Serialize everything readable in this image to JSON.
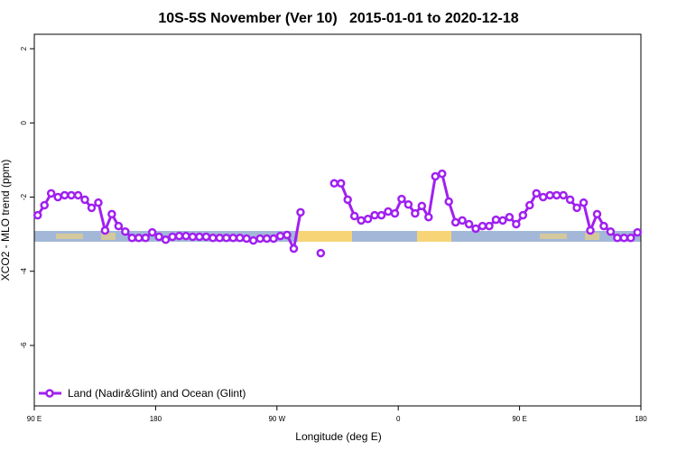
{
  "chart_data": {
    "type": "line",
    "title": "10S-5S November (Ver 10)   2015-01-01 to 2020-12-18",
    "x_label": "Longitude (deg E)",
    "y_label": "XCO2 - MLO trend (ppm)",
    "xlim": [
      90,
      540
    ],
    "xticks": [
      {
        "value": 90,
        "label": "90 E"
      },
      {
        "value": 180,
        "label": "180"
      },
      {
        "value": 270,
        "label": "90 W"
      },
      {
        "value": 360,
        "label": "0"
      },
      {
        "value": 450,
        "label": "90 E"
      },
      {
        "value": 540,
        "label": "180"
      }
    ],
    "ylim": [
      -7.63,
      2.39
    ],
    "yticks": [
      2,
      0,
      -2,
      -4,
      -6
    ],
    "legend": "bottom-left",
    "x": [
      92.5,
      97.5,
      102.5,
      107.5,
      112.5,
      117.5,
      122.5,
      127.5,
      132.5,
      137.5,
      142.5,
      147.5,
      152.5,
      157.5,
      162.5,
      167.5,
      172.5,
      177.5,
      182.5,
      187.5,
      192.5,
      197.5,
      202.5,
      207.5,
      212.5,
      217.5,
      222.5,
      227.5,
      232.5,
      237.5,
      242.5,
      247.5,
      252.5,
      257.5,
      262.5,
      267.5,
      272.5,
      277.5,
      282.5,
      287.5,
      292.5,
      297.5,
      302.5,
      307.5,
      312.5,
      317.5,
      322.5,
      327.5,
      332.5,
      337.5,
      342.5,
      347.5,
      352.5,
      357.5,
      362.5,
      367.5,
      372.5,
      377.5,
      382.5,
      387.5,
      392.5,
      397.5,
      402.5,
      407.5,
      412.5,
      417.5,
      422.5,
      427.5,
      432.5,
      437.5,
      442.5,
      447.5,
      452.5,
      457.5,
      462.5,
      467.5,
      472.5,
      477.5,
      482.5,
      487.5,
      492.5,
      497.5,
      502.5,
      507.5,
      512.5,
      517.5,
      522.5,
      527.5,
      532.5,
      537.5
    ],
    "series": [
      {
        "name": "Land (Nadir&Glint) and Ocean (Glint)",
        "color": "#a020f0",
        "values": [
          -2.49,
          -2.22,
          -1.9,
          -2.0,
          -1.95,
          -1.95,
          -1.95,
          -2.07,
          -2.29,
          -2.15,
          -2.9,
          -2.46,
          -2.78,
          -2.93,
          -3.1,
          -3.1,
          -3.1,
          -2.95,
          -3.07,
          -3.15,
          -3.07,
          -3.05,
          -3.05,
          -3.07,
          -3.07,
          -3.07,
          -3.1,
          -3.1,
          -3.1,
          -3.1,
          -3.1,
          -3.12,
          -3.17,
          -3.12,
          -3.12,
          -3.12,
          -3.05,
          -3.02,
          -3.39,
          -2.41,
          null,
          null,
          -3.51,
          null,
          -1.63,
          -1.63,
          -2.07,
          -2.51,
          -2.63,
          -2.59,
          -2.49,
          -2.49,
          -2.39,
          -2.44,
          -2.05,
          -2.2,
          -2.44,
          -2.24,
          -2.54,
          -1.44,
          -1.37,
          -2.12,
          -2.68,
          -2.63,
          -2.73,
          -2.85,
          -2.78,
          -2.78,
          -2.61,
          -2.63,
          -2.54,
          -2.73,
          -2.49,
          -2.22,
          -1.9,
          -2.0,
          -1.95,
          -1.95,
          -1.95,
          -2.07,
          -2.29,
          -2.15,
          -2.9,
          -2.46,
          -2.78,
          -2.93,
          -3.1,
          -3.1,
          -3.1,
          -2.95
        ]
      }
    ]
  }
}
